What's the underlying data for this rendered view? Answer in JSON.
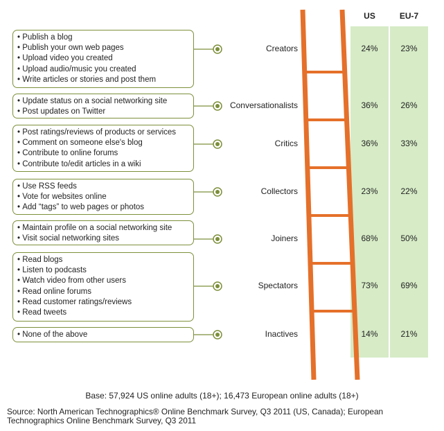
{
  "colors": {
    "ladder": "#e5702a",
    "table_fill": "#d6ebc6",
    "box_border": "#7c8f3a",
    "connector": "#7c8f3a"
  },
  "headers": {
    "us": "US",
    "eu": "EU-7"
  },
  "chart_data": {
    "type": "table",
    "columns": [
      "US",
      "EU-7"
    ],
    "rows": [
      {
        "label": "Creators",
        "us": "24%",
        "eu": "23%",
        "activities": [
          "Publish a blog",
          "Publish your own web pages",
          "Upload video you created",
          "Upload audio/music you created",
          "Write articles or stories and post them"
        ]
      },
      {
        "label": "Conversationalists",
        "us": "36%",
        "eu": "26%",
        "activities": [
          "Update status on a social networking site",
          "Post updates on Twitter"
        ]
      },
      {
        "label": "Critics",
        "us": "36%",
        "eu": "33%",
        "activities": [
          "Post ratings/reviews of products or services",
          "Comment on someone else's blog",
          "Contribute to online forums",
          "Contribute to/edit articles in a wiki"
        ]
      },
      {
        "label": "Collectors",
        "us": "23%",
        "eu": "22%",
        "activities": [
          "Use RSS feeds",
          "Vote for websites online",
          "Add “tags” to web pages or photos"
        ]
      },
      {
        "label": "Joiners",
        "us": "68%",
        "eu": "50%",
        "activities": [
          "Maintain profile on a social networking site",
          "Visit social networking sites"
        ]
      },
      {
        "label": "Spectators",
        "us": "73%",
        "eu": "69%",
        "activities": [
          "Read blogs",
          "Listen to podcasts",
          "Watch video from other users",
          "Read online forums",
          "Read customer ratings/reviews",
          "Read tweets"
        ]
      },
      {
        "label": "Inactives",
        "us": "14%",
        "eu": "21%",
        "activities": [
          "None of the above"
        ]
      }
    ]
  },
  "footnote": {
    "base": "Base: 57,924 US online adults (18+); 16,473 European online adults (18+)",
    "source": "Source: North American Technographics® Online Benchmark Survey, Q3 2011 (US, Canada); European Technographics Online Benchmark Survey, Q3 2011"
  }
}
